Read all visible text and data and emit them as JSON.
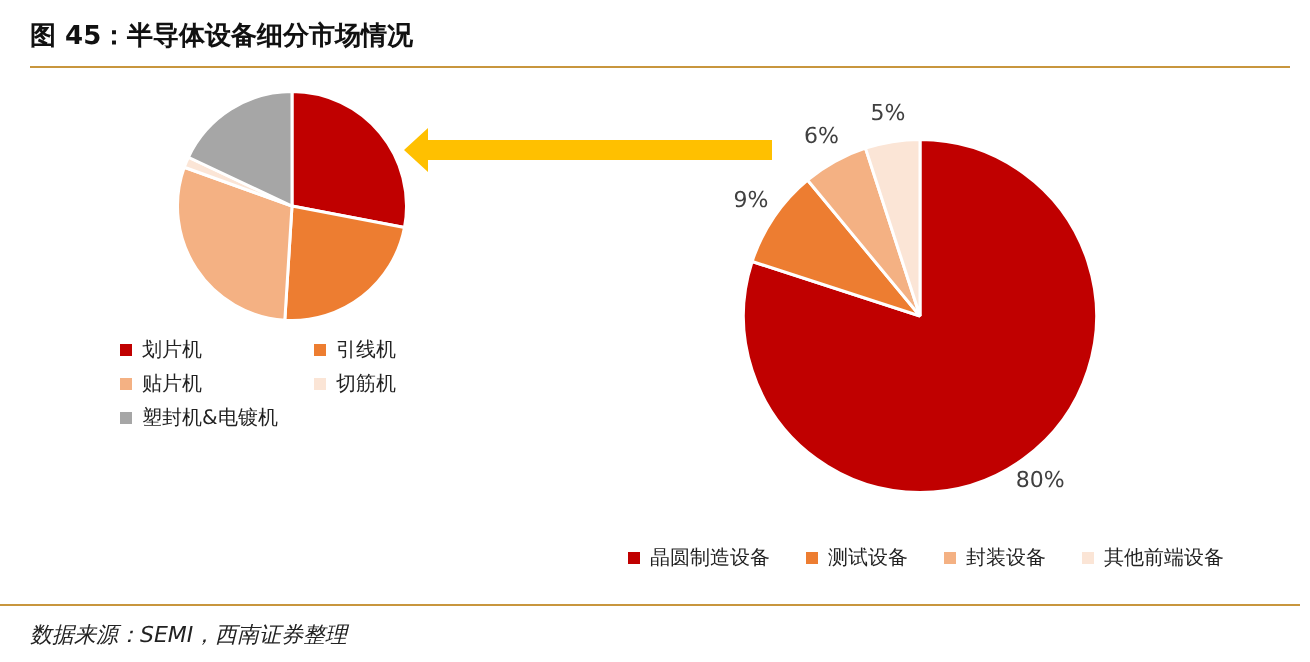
{
  "chart_data": [
    {
      "type": "pie",
      "title": "图 45：半导体设备细分市场情况",
      "categories": [
        "划片机",
        "引线机",
        "贴片机",
        "切筋机",
        "塑封机&电镀机"
      ],
      "values": [
        28,
        23,
        29.5,
        1.5,
        18
      ],
      "colors": [
        "#c00000",
        "#ed7d31",
        "#f4b183",
        "#fbe5d6",
        "#a6a6a6"
      ],
      "legend": "bottom",
      "annotations": [
        "数据来源：SEMI，西南证券整理"
      ]
    },
    {
      "type": "pie",
      "categories": [
        "晶圆制造设备",
        "测试设备",
        "封装设备",
        "其他前端设备"
      ],
      "values": [
        80,
        9,
        6,
        5
      ],
      "colors": [
        "#c00000",
        "#ed7d31",
        "#f4b183",
        "#fbe5d6"
      ],
      "value_labels": [
        "80%",
        "9%",
        "6%",
        "5%"
      ],
      "legend": "bottom"
    }
  ]
}
